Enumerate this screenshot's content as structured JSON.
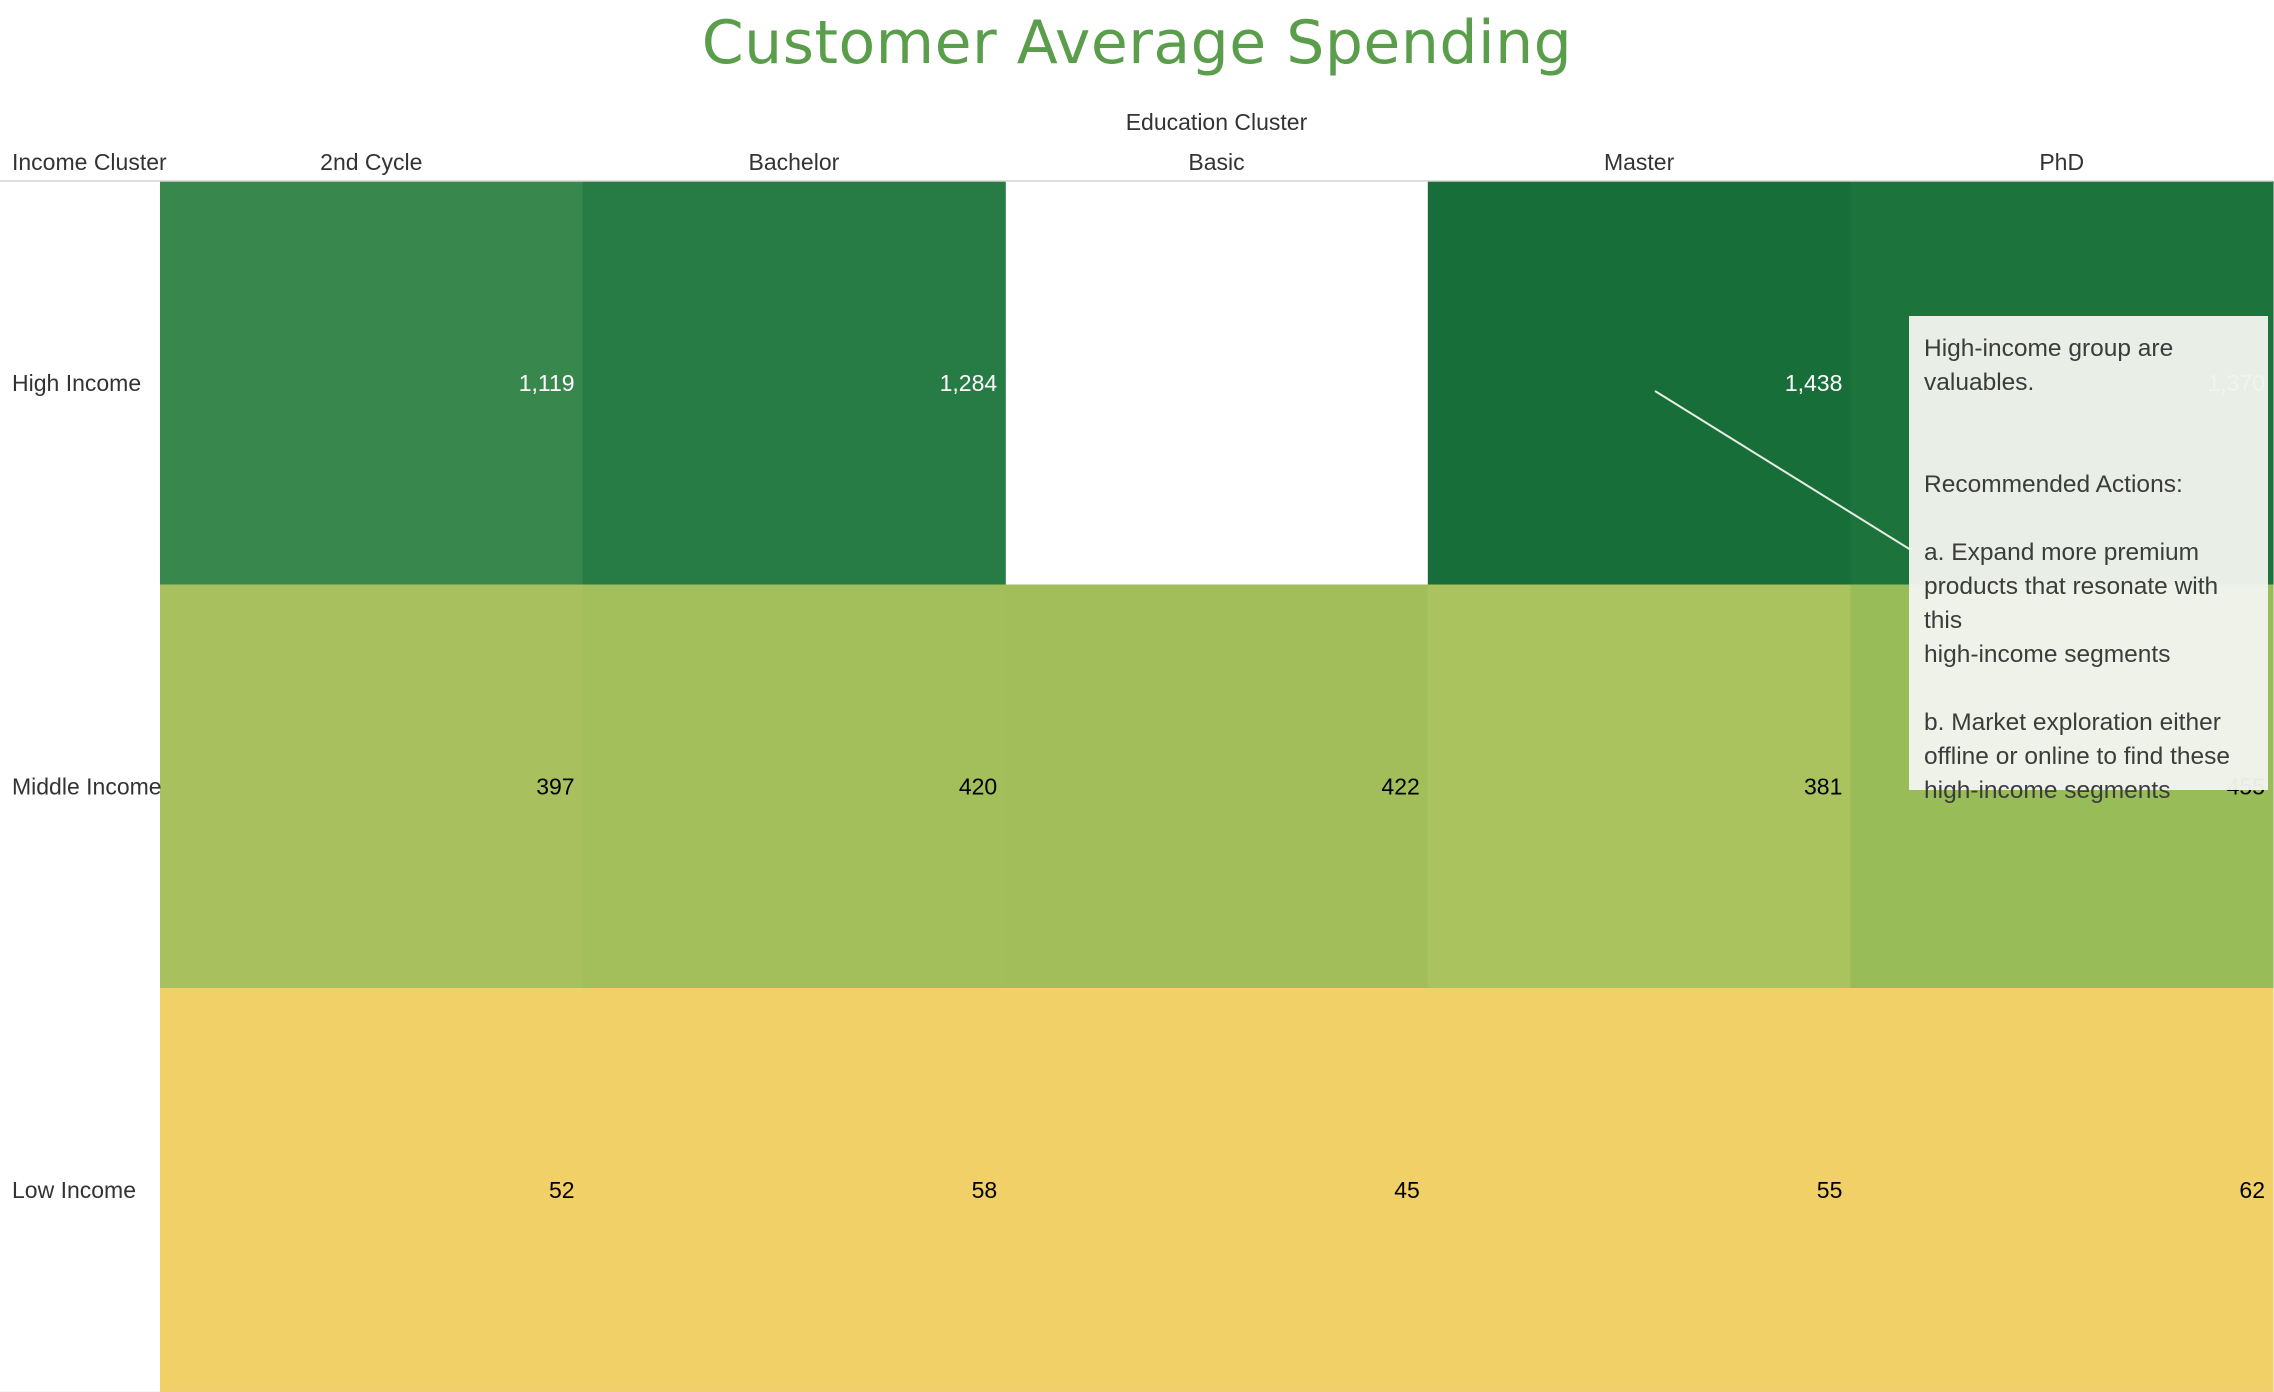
{
  "chart_data": {
    "type": "heatmap",
    "title": "Customer Average Spending",
    "x_title": "Education Cluster",
    "y_title": "Income Cluster",
    "x_categories": [
      "2nd Cycle",
      "Bachelor",
      "Basic",
      "Master",
      "PhD"
    ],
    "y_categories": [
      "High Income",
      "Middle Income",
      "Low Income"
    ],
    "values": [
      [
        "1,119",
        "1,284",
        null,
        "1,438",
        "1,370"
      ],
      [
        "397",
        "420",
        "422",
        "381",
        "455"
      ],
      [
        "52",
        "58",
        "45",
        "55",
        "62"
      ]
    ],
    "cell_colors": [
      [
        "#38874d",
        "#277b44",
        null,
        "#176e39",
        "#1d733c"
      ],
      [
        "#a8c05e",
        "#a3bf5c",
        "#a2be5b",
        "#aac35f",
        "#98bc58"
      ],
      [
        "#f1d067",
        "#f1d067",
        "#f1d067",
        "#f1d067",
        "#f1d067"
      ]
    ],
    "label_colors": [
      "#ffffff",
      "#000000",
      "#000000"
    ]
  },
  "annotation": {
    "paragraphs": [
      "High-income group are\nvaluables.",
      "Recommended Actions:",
      "a. Expand more premium\nproducts that resonate with this\nhigh-income segments",
      "b. Market exploration either\noffline or online to find these\nhigh-income segments"
    ]
  },
  "colors": {
    "title": "#5a9e4b",
    "text": "#333333"
  }
}
